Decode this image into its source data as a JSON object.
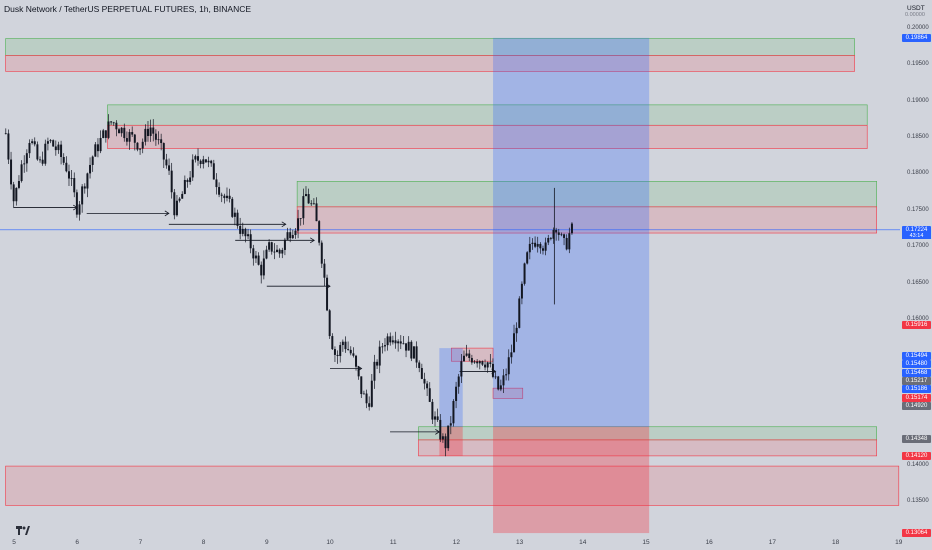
{
  "header": {
    "title": "Dusk Network / TetherUS PERPETUAL FUTURES, 1h, BINANCE",
    "currency": "USDT",
    "currency_sub": "0.00000"
  },
  "chart_data": {
    "type": "candlestick",
    "symbol": "Dusk Network / TetherUS PERPETUAL FUTURES",
    "interval": "1h",
    "exchange": "BINANCE",
    "ylim": [
      0.1302,
      0.2038
    ],
    "xlim": [
      4.867,
      19.0
    ],
    "y_ticks": [
      "0.20000",
      "0.19500",
      "0.19000",
      "0.18500",
      "0.18000",
      "0.17500",
      "0.17000",
      "0.16500",
      "0.16000",
      "0.14000",
      "0.13500"
    ],
    "x_ticks": [
      "5",
      "6",
      "7",
      "8",
      "9",
      "10",
      "11",
      "12",
      "13",
      "14",
      "15",
      "16",
      "17",
      "18",
      "19"
    ],
    "price_labels": [
      {
        "value": "0.19864",
        "color": "#2962ff"
      },
      {
        "value": "0.15916",
        "color": "#f23645"
      },
      {
        "value": "0.15494",
        "color": "#2962ff"
      },
      {
        "value": "0.15480",
        "color": "#2962ff"
      },
      {
        "value": "0.15468",
        "color": "#2962ff"
      },
      {
        "value": "0.15217",
        "color": "#6a6d78"
      },
      {
        "value": "0.15186",
        "color": "#2962ff"
      },
      {
        "value": "0.15174",
        "color": "#f23645"
      },
      {
        "value": "0.14920",
        "color": "#6a6d78"
      },
      {
        "value": "0.14348",
        "color": "#6a6d78"
      },
      {
        "value": "0.14120",
        "color": "#f23645"
      },
      {
        "value": "0.13064",
        "color": "#f23645"
      }
    ],
    "current": {
      "price": "0.17224",
      "countdown": "43:14",
      "color": "#2962ff"
    },
    "zones": [
      {
        "kind": "green",
        "x": [
          4.867,
          18.3
        ],
        "y": [
          0.1962,
          0.1985
        ]
      },
      {
        "kind": "red",
        "x": [
          4.867,
          18.3
        ],
        "y": [
          0.194,
          0.1962
        ]
      },
      {
        "kind": "green",
        "x": [
          6.48,
          18.5
        ],
        "y": [
          0.1866,
          0.1894
        ]
      },
      {
        "kind": "red",
        "x": [
          6.48,
          18.5
        ],
        "y": [
          0.1834,
          0.1866
        ]
      },
      {
        "kind": "green",
        "x": [
          9.48,
          18.65
        ],
        "y": [
          0.1754,
          0.1789
        ]
      },
      {
        "kind": "red",
        "x": [
          9.48,
          18.65
        ],
        "y": [
          0.1718,
          0.1754
        ]
      },
      {
        "kind": "green",
        "x": [
          11.4,
          18.65
        ],
        "y": [
          0.1434,
          0.1452
        ]
      },
      {
        "kind": "red",
        "x": [
          11.4,
          18.65
        ],
        "y": [
          0.1412,
          0.1434
        ]
      },
      {
        "kind": "red",
        "x": [
          4.867,
          19.0
        ],
        "y": [
          0.1344,
          0.1398
        ]
      },
      {
        "kind": "red",
        "x": [
          11.92,
          12.58
        ],
        "y": [
          0.1542,
          0.156
        ]
      },
      {
        "kind": "red",
        "x": [
          12.58,
          13.05
        ],
        "y": [
          0.1491,
          0.1505
        ]
      }
    ],
    "positions": [
      {
        "x": [
          12.58,
          15.05
        ],
        "entry": 0.1452,
        "target": 0.1986,
        "stop": 0.1306
      },
      {
        "x": [
          11.73,
          12.1
        ],
        "entry": 0.1452,
        "target": 0.156,
        "stop": 0.1412
      }
    ],
    "arrows": [
      {
        "x": [
          5.0,
          6.0
        ],
        "y": 0.1753
      },
      {
        "x": [
          6.15,
          7.45
        ],
        "y": 0.1745
      },
      {
        "x": [
          7.45,
          9.3
        ],
        "y": 0.173
      },
      {
        "x": [
          8.5,
          9.75
        ],
        "y": 0.1708
      },
      {
        "x": [
          9.0,
          10.0
        ],
        "y": 0.1645
      },
      {
        "x": [
          10.0,
          10.5
        ],
        "y": 0.1532
      },
      {
        "x": [
          10.95,
          11.73
        ],
        "y": 0.1445
      },
      {
        "x": [
          12.05,
          12.62
        ],
        "y": 0.1528
      }
    ],
    "price_path": [
      [
        4.87,
        0.1855
      ],
      [
        5.0,
        0.176
      ],
      [
        5.1,
        0.1805
      ],
      [
        5.25,
        0.185
      ],
      [
        5.4,
        0.181
      ],
      [
        5.55,
        0.1845
      ],
      [
        5.7,
        0.183
      ],
      [
        5.85,
        0.1805
      ],
      [
        6.0,
        0.1752
      ],
      [
        6.12,
        0.179
      ],
      [
        6.25,
        0.1825
      ],
      [
        6.4,
        0.185
      ],
      [
        6.55,
        0.1872
      ],
      [
        6.7,
        0.186
      ],
      [
        6.85,
        0.185
      ],
      [
        7.0,
        0.1838
      ],
      [
        7.15,
        0.1865
      ],
      [
        7.3,
        0.1838
      ],
      [
        7.45,
        0.18
      ],
      [
        7.55,
        0.1745
      ],
      [
        7.7,
        0.178
      ],
      [
        7.85,
        0.1815
      ],
      [
        8.0,
        0.1825
      ],
      [
        8.15,
        0.18
      ],
      [
        8.3,
        0.177
      ],
      [
        8.45,
        0.175
      ],
      [
        8.6,
        0.172
      ],
      [
        8.75,
        0.17
      ],
      [
        8.9,
        0.1665
      ],
      [
        9.05,
        0.17
      ],
      [
        9.2,
        0.169
      ],
      [
        9.35,
        0.172
      ],
      [
        9.5,
        0.1735
      ],
      [
        9.62,
        0.177
      ],
      [
        9.75,
        0.1748
      ],
      [
        9.85,
        0.17
      ],
      [
        9.92,
        0.165
      ],
      [
        10.0,
        0.158
      ],
      [
        10.1,
        0.1545
      ],
      [
        10.2,
        0.157
      ],
      [
        10.35,
        0.155
      ],
      [
        10.5,
        0.15
      ],
      [
        10.6,
        0.148
      ],
      [
        10.7,
        0.153
      ],
      [
        10.85,
        0.157
      ],
      [
        11.0,
        0.158
      ],
      [
        11.15,
        0.157
      ],
      [
        11.3,
        0.1555
      ],
      [
        11.42,
        0.154
      ],
      [
        11.52,
        0.15
      ],
      [
        11.62,
        0.147
      ],
      [
        11.73,
        0.1445
      ],
      [
        11.82,
        0.1425
      ],
      [
        11.9,
        0.1455
      ],
      [
        12.0,
        0.1505
      ],
      [
        12.1,
        0.1545
      ],
      [
        12.25,
        0.1548
      ],
      [
        12.4,
        0.1545
      ],
      [
        12.5,
        0.154
      ],
      [
        12.58,
        0.152
      ],
      [
        12.68,
        0.15
      ],
      [
        12.78,
        0.1525
      ],
      [
        12.88,
        0.156
      ],
      [
        13.0,
        0.162
      ],
      [
        13.1,
        0.168
      ],
      [
        13.2,
        0.1705
      ],
      [
        13.3,
        0.1712
      ],
      [
        13.42,
        0.1695
      ],
      [
        13.5,
        0.172
      ],
      [
        13.58,
        0.173
      ],
      [
        13.65,
        0.171
      ],
      [
        13.72,
        0.1698
      ],
      [
        13.78,
        0.1715
      ],
      [
        13.83,
        0.1722
      ]
    ],
    "grid": false,
    "legend": "none"
  }
}
